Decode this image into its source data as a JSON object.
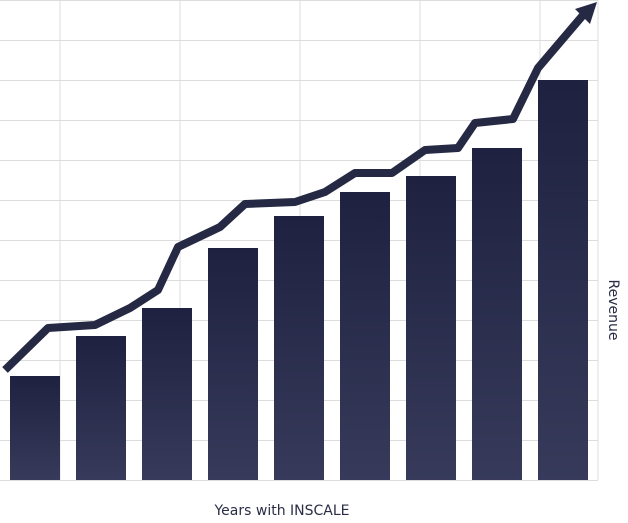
{
  "chart_data": {
    "type": "bar",
    "x_label": "Years with INSCALE",
    "y_label": "Revenue",
    "categories": [
      null,
      null,
      null,
      null,
      null,
      null,
      null,
      null,
      null
    ],
    "values": [
      2.6,
      3.6,
      4.3,
      5.8,
      6.6,
      7.2,
      7.6,
      8.3,
      10.0
    ],
    "color": "#1e2240",
    "ylim": [
      0,
      12
    ],
    "yticks": [
      0,
      1,
      2,
      3,
      4,
      5,
      6,
      7,
      8,
      9,
      10,
      11,
      12
    ],
    "grid": true
  }
}
